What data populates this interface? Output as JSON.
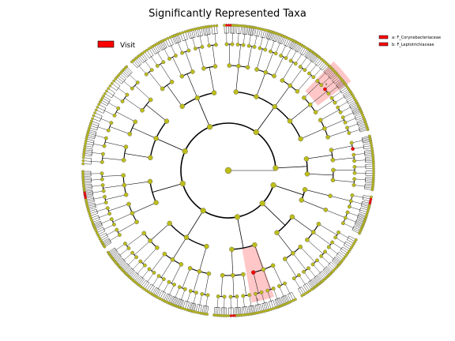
{
  "figure": {
    "title": "Significantly Represented Taxa"
  },
  "legend": {
    "group": {
      "label": "Visit",
      "color": "#ff0000"
    }
  },
  "clade_legend": [
    {
      "label": "a: F_Corynebacteriaceae",
      "color": "#ff0000"
    },
    {
      "label": "b: F_Leptotrichiaceae",
      "color": "#ff0000"
    }
  ],
  "highlighted_clades": [
    {
      "letter": "a",
      "color": "#ff9999"
    },
    {
      "letter": "b",
      "color": "#ff9999"
    }
  ],
  "colors": {
    "node_default": "#bdbd1a",
    "node_enriched": "#ff0000",
    "edge": "#000000"
  }
}
